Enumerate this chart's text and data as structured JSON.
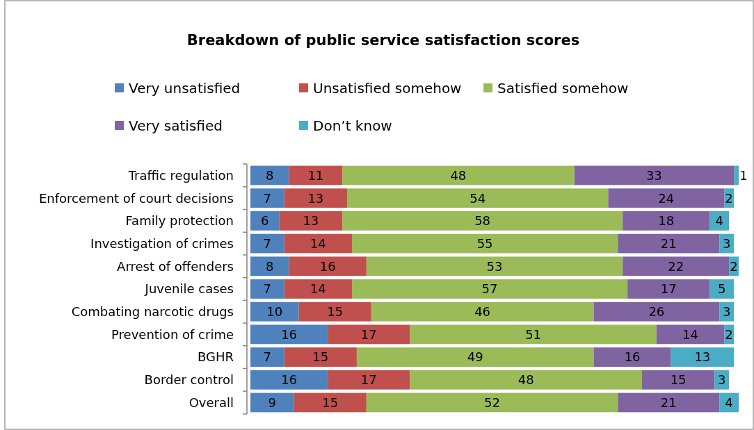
{
  "chart_data": {
    "type": "bar",
    "orientation": "horizontal",
    "stacked": true,
    "data_labels": true,
    "legend": "top",
    "title": "Breakdown of public service satisfaction scores",
    "categories": [
      "Traffic regulation",
      "Enforcement of court decisions",
      "Family protection",
      "Investigation of crimes",
      "Arrest of offenders",
      "Juvenile cases",
      "Combating narcotic drugs",
      "Prevention of crime",
      "BGHR",
      "Border control",
      "Overall"
    ],
    "series": [
      {
        "name": "Very unsatisfied",
        "color": "#4f81bd",
        "values": [
          8,
          7,
          6,
          7,
          8,
          7,
          10,
          16,
          7,
          16,
          9
        ]
      },
      {
        "name": "Unsatisfied somehow",
        "color": "#c0504d",
        "values": [
          11,
          13,
          13,
          14,
          16,
          14,
          15,
          17,
          15,
          17,
          15
        ]
      },
      {
        "name": "Satisfied somehow",
        "color": "#9bbb59",
        "values": [
          48,
          54,
          58,
          55,
          53,
          57,
          46,
          51,
          49,
          48,
          52
        ]
      },
      {
        "name": "Very satisfied",
        "color": "#8064a2",
        "values": [
          33,
          24,
          18,
          21,
          22,
          17,
          26,
          14,
          16,
          15,
          21
        ]
      },
      {
        "name": "Don’t know",
        "color": "#4bacc6",
        "values": [
          1,
          2,
          4,
          3,
          2,
          5,
          3,
          2,
          13,
          3,
          4
        ]
      }
    ]
  }
}
